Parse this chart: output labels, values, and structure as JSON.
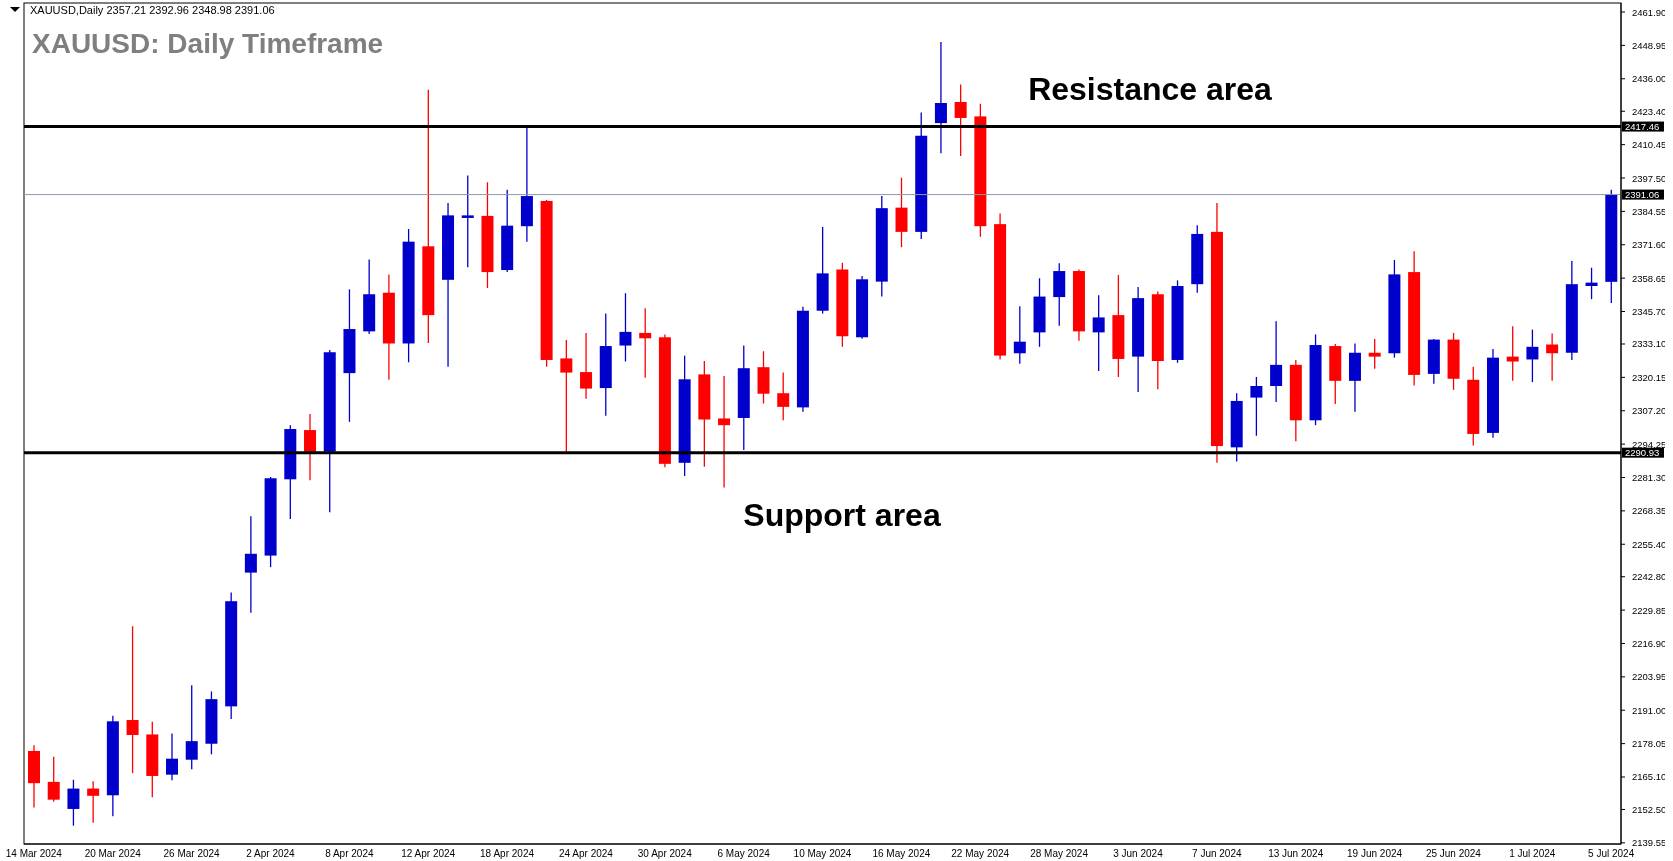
{
  "chart_data": {
    "type": "candlestick",
    "title": "XAUUSD: Daily Timeframe",
    "annotations": [
      "XAUUSD,Daily  2357.21 2392.96 2348.98 2391.06",
      "Resistance area",
      "Support area"
    ],
    "categories": [
      "14 Mar 2024",
      null,
      null,
      null,
      "20 Mar 2024",
      null,
      null,
      null,
      "26 Mar 2024",
      null,
      null,
      null,
      "2 Apr 2024",
      null,
      null,
      null,
      "8 Apr 2024",
      null,
      null,
      null,
      "12 Apr 2024",
      null,
      null,
      null,
      "18 Apr 2024",
      null,
      null,
      null,
      "24 Apr 2024",
      null,
      null,
      null,
      "30 Apr 2024",
      null,
      null,
      null,
      "6 May 2024",
      null,
      null,
      null,
      "10 May 2024",
      null,
      null,
      null,
      "16 May 2024",
      null,
      null,
      null,
      "22 May 2024",
      null,
      null,
      null,
      "28 May 2024",
      null,
      null,
      null,
      "3 Jun 2024",
      null,
      null,
      null,
      "7 Jun 2024",
      null,
      null,
      null,
      "13 Jun 2024",
      null,
      null,
      null,
      "19 Jun 2024",
      null,
      null,
      null,
      "25 Jun 2024",
      null,
      null,
      null,
      "1 Jul 2024",
      null,
      null,
      null,
      "5 Jul 2024"
    ],
    "ohlc": [
      [
        2175.2,
        2177.4,
        2153.3,
        2162.7
      ],
      [
        2163.2,
        2173.0,
        2155.5,
        2156.3
      ],
      [
        2152.7,
        2164.0,
        2146.2,
        2160.6
      ],
      [
        2160.6,
        2163.4,
        2147.3,
        2157.8
      ],
      [
        2158.0,
        2188.9,
        2149.9,
        2186.7
      ],
      [
        2187.2,
        2223.6,
        2166.6,
        2181.4
      ],
      [
        2181.6,
        2186.5,
        2157.2,
        2165.5
      ],
      [
        2166.0,
        2182.0,
        2163.8,
        2172.2
      ],
      [
        2171.8,
        2200.7,
        2168.1,
        2179.0
      ],
      [
        2178.0,
        2198.3,
        2173.9,
        2195.3
      ],
      [
        2192.5,
        2236.7,
        2187.6,
        2233.3
      ],
      [
        2244.4,
        2266.3,
        2228.8,
        2251.7
      ],
      [
        2251.0,
        2281.5,
        2246.5,
        2281.0
      ],
      [
        2280.6,
        2301.6,
        2265.2,
        2300.1
      ],
      [
        2299.7,
        2305.9,
        2280.2,
        2291.3
      ],
      [
        2291.3,
        2330.8,
        2267.8,
        2329.9
      ],
      [
        2321.8,
        2354.3,
        2302.9,
        2338.9
      ],
      [
        2338.0,
        2365.9,
        2337.0,
        2352.4
      ],
      [
        2353.0,
        2360.1,
        2319.2,
        2333.3
      ],
      [
        2333.3,
        2377.7,
        2326.0,
        2372.8
      ],
      [
        2371.0,
        2431.7,
        2333.5,
        2344.3
      ],
      [
        2358.0,
        2387.8,
        2324.3,
        2383.0
      ],
      [
        2382.0,
        2398.5,
        2362.9,
        2383.0
      ],
      [
        2382.8,
        2395.9,
        2354.8,
        2361.0
      ],
      [
        2361.8,
        2392.9,
        2361.0,
        2379.0
      ],
      [
        2378.8,
        2416.9,
        2372.8,
        2390.5
      ],
      [
        2388.6,
        2389.0,
        2324.3,
        2326.9
      ],
      [
        2327.5,
        2334.6,
        2291.3,
        2322.0
      ],
      [
        2322.2,
        2337.4,
        2311.9,
        2315.8
      ],
      [
        2316.0,
        2344.9,
        2305.3,
        2332.3
      ],
      [
        2332.5,
        2352.8,
        2326.3,
        2337.8
      ],
      [
        2337.4,
        2347.0,
        2320.0,
        2335.3
      ],
      [
        2335.7,
        2336.8,
        2285.3,
        2286.6
      ],
      [
        2287.0,
        2328.6,
        2281.9,
        2319.4
      ],
      [
        2321.3,
        2326.5,
        2285.5,
        2303.8
      ],
      [
        2304.2,
        2320.7,
        2277.4,
        2301.6
      ],
      [
        2304.4,
        2332.5,
        2292.0,
        2323.7
      ],
      [
        2324.1,
        2330.3,
        2310.0,
        2313.8
      ],
      [
        2314.0,
        2322.0,
        2303.5,
        2308.7
      ],
      [
        2308.5,
        2347.5,
        2306.8,
        2346.0
      ],
      [
        2346.0,
        2378.5,
        2344.9,
        2360.5
      ],
      [
        2362.0,
        2364.6,
        2332.0,
        2336.1
      ],
      [
        2335.7,
        2359.5,
        2335.1,
        2358.2
      ],
      [
        2357.3,
        2390.5,
        2351.5,
        2385.8
      ],
      [
        2386.0,
        2397.6,
        2370.6,
        2376.6
      ],
      [
        2376.6,
        2422.9,
        2373.8,
        2413.9
      ],
      [
        2418.8,
        2450.3,
        2407.1,
        2426.6
      ],
      [
        2427.0,
        2433.8,
        2406.0,
        2420.8
      ],
      [
        2421.4,
        2426.3,
        2374.7,
        2378.8
      ],
      [
        2379.6,
        2383.7,
        2327.1,
        2328.6
      ],
      [
        2329.5,
        2347.7,
        2325.4,
        2334.0
      ],
      [
        2337.6,
        2358.6,
        2332.0,
        2351.5
      ],
      [
        2351.3,
        2364.4,
        2340.2,
        2361.4
      ],
      [
        2361.4,
        2362.0,
        2334.4,
        2338.0
      ],
      [
        2337.6,
        2352.0,
        2322.6,
        2343.4
      ],
      [
        2344.3,
        2359.9,
        2320.3,
        2327.3
      ],
      [
        2328.2,
        2355.2,
        2314.5,
        2350.9
      ],
      [
        2352.4,
        2353.5,
        2315.5,
        2326.5
      ],
      [
        2326.9,
        2357.8,
        2325.8,
        2355.6
      ],
      [
        2356.3,
        2379.2,
        2353.0,
        2375.8
      ],
      [
        2376.6,
        2387.8,
        2287.0,
        2293.5
      ],
      [
        2293.0,
        2314.0,
        2287.5,
        2311.0
      ],
      [
        2312.3,
        2320.3,
        2297.5,
        2316.8
      ],
      [
        2316.8,
        2341.9,
        2310.6,
        2325.0
      ],
      [
        2325.0,
        2326.9,
        2295.4,
        2303.5
      ],
      [
        2303.5,
        2336.8,
        2301.6,
        2332.7
      ],
      [
        2332.3,
        2333.1,
        2309.8,
        2318.8
      ],
      [
        2318.8,
        2333.3,
        2306.8,
        2329.7
      ],
      [
        2329.7,
        2335.0,
        2323.5,
        2328.2
      ],
      [
        2329.5,
        2365.7,
        2327.8,
        2360.1
      ],
      [
        2361.0,
        2369.1,
        2317.0,
        2321.1
      ],
      [
        2321.5,
        2335.0,
        2317.7,
        2334.8
      ],
      [
        2334.8,
        2337.4,
        2315.3,
        2319.6
      ],
      [
        2319.2,
        2324.3,
        2293.7,
        2298.2
      ],
      [
        2298.6,
        2331.2,
        2296.7,
        2327.8
      ],
      [
        2328.2,
        2340.0,
        2318.8,
        2326.3
      ],
      [
        2327.1,
        2338.7,
        2318.3,
        2332.0
      ],
      [
        2332.9,
        2337.2,
        2318.8,
        2329.5
      ],
      [
        2329.7,
        2365.3,
        2326.9,
        2356.3
      ],
      [
        2355.6,
        2362.7,
        2350.5,
        2356.9
      ],
      [
        2357.21,
        2392.96,
        2348.98,
        2391.06
      ]
    ],
    "colors": [
      "#ff0000",
      "#ff0000",
      "#0000cc",
      "#ff0000",
      "#0000cc",
      "#ff0000",
      "#ff0000",
      "#0000cc",
      "#0000cc",
      "#0000cc",
      "#0000cc",
      "#0000cc",
      "#0000cc",
      "#0000cc",
      "#ff0000",
      "#0000cc",
      "#0000cc",
      "#0000cc",
      "#ff0000",
      "#0000cc",
      "#ff0000",
      "#0000cc",
      "#0000cc",
      "#ff0000",
      "#0000cc",
      "#0000cc",
      "#ff0000",
      "#ff0000",
      "#ff0000",
      "#0000cc",
      "#0000cc",
      "#ff0000",
      "#ff0000",
      "#0000cc",
      "#ff0000",
      "#ff0000",
      "#0000cc",
      "#ff0000",
      "#ff0000",
      "#0000cc",
      "#0000cc",
      "#ff0000",
      "#0000cc",
      "#0000cc",
      "#ff0000",
      "#0000cc",
      "#0000cc",
      "#ff0000",
      "#ff0000",
      "#ff0000",
      "#0000cc",
      "#0000cc",
      "#0000cc",
      "#ff0000",
      "#0000cc",
      "#ff0000",
      "#0000cc",
      "#ff0000",
      "#0000cc",
      "#0000cc",
      "#ff0000",
      "#0000cc",
      "#0000cc",
      "#0000cc",
      "#ff0000",
      "#0000cc",
      "#ff0000",
      "#0000cc",
      "#ff0000",
      "#0000cc",
      "#ff0000",
      "#0000cc",
      "#ff0000",
      "#ff0000",
      "#0000cc",
      "#ff0000",
      "#0000cc",
      "#ff0000",
      "#0000cc",
      "#0000cc",
      "#0000cc"
    ],
    "ylim": [
      2139.1,
      2465.4
    ],
    "yticks": [
      {
        "value": 2461.9,
        "label": "2461.90"
      },
      2448.95,
      {
        "value": 2436,
        "label": "2436.00"
      },
      {
        "value": 2423.4,
        "label": "2423.40"
      },
      2410.45,
      {
        "value": 2397.5,
        "label": "2397.50"
      },
      2384.55,
      {
        "value": 2371.6,
        "label": "2371.60"
      },
      2358.65,
      {
        "value": 2345.7,
        "label": "2345.70"
      },
      {
        "value": 2333.1,
        "label": "2333.10"
      },
      2320.15,
      {
        "value": 2307.2,
        "label": "2307.20"
      },
      2294.25,
      {
        "value": 2281.3,
        "label": "2281.30"
      },
      2268.35,
      {
        "value": 2255.4,
        "label": "2255.40"
      },
      {
        "value": 2242.8,
        "label": "2242.80"
      },
      2229.85,
      {
        "value": 2216.9,
        "label": "2216.90"
      },
      2203.95,
      {
        "value": 2191,
        "label": "2191.00"
      },
      2178.05,
      {
        "value": 2165.1,
        "label": "2165.10"
      },
      {
        "value": 2152.5,
        "label": "2152.50"
      },
      2139.55
    ],
    "ref_lines": [
      {
        "axis": "y",
        "value": 2417.46,
        "label": "2417.46",
        "color": "#000000"
      },
      {
        "axis": "y",
        "value": 2391.06,
        "label": "2391.06",
        "color": "#8a9aaa"
      },
      {
        "axis": "y",
        "value": 2290.93,
        "label": "2290.93",
        "color": "#000000"
      }
    ],
    "grid": false,
    "legend": false
  }
}
